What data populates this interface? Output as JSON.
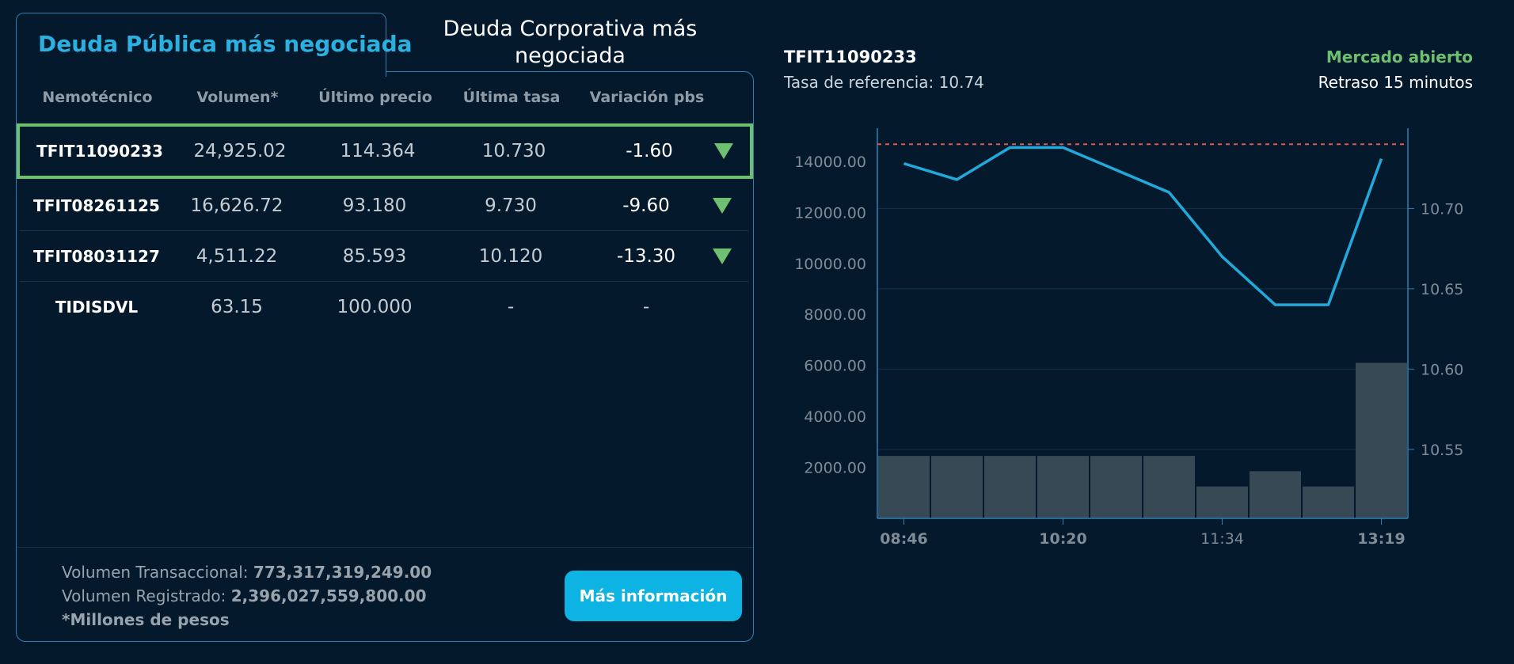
{
  "tabs": {
    "active": "Deuda Pública más negociada",
    "inactive_line1": "Deuda Corporativa más",
    "inactive_line2": "negociada"
  },
  "table": {
    "headers": [
      "Nemotécnico",
      "Volumen*",
      "Último precio",
      "Última tasa",
      "Variación pbs"
    ],
    "rows": [
      {
        "nemo": "TFIT11090233",
        "volumen": "24,925.02",
        "precio": "114.364",
        "tasa": "10.730",
        "variacion": "-1.60",
        "trend": "down",
        "selected": true
      },
      {
        "nemo": "TFIT08261125",
        "volumen": "16,626.72",
        "precio": "93.180",
        "tasa": "9.730",
        "variacion": "-9.60",
        "trend": "down",
        "selected": false
      },
      {
        "nemo": "TFIT08031127",
        "volumen": "4,511.22",
        "precio": "85.593",
        "tasa": "10.120",
        "variacion": "-13.30",
        "trend": "down",
        "selected": false
      },
      {
        "nemo": "TIDISDVL",
        "volumen": "63.15",
        "precio": "100.000",
        "tasa": "-",
        "variacion": "-",
        "trend": "none",
        "selected": false
      }
    ]
  },
  "footer": {
    "vol_trans_label": "Volumen Transaccional: ",
    "vol_trans_value": "773,317,319,249.00",
    "vol_reg_label": "Volumen Registrado: ",
    "vol_reg_value": "2,396,027,559,800.00",
    "note": "*Millones de pesos",
    "button": "Más información"
  },
  "detail": {
    "ticker": "TFIT11090233",
    "ref_rate": "Tasa de referencia: 10.74",
    "market_status": "Mercado abierto",
    "delay": "Retraso 15 minutos"
  },
  "colors": {
    "background": "#041a2c",
    "accent": "#2bb0e0",
    "positive": "#6cc070",
    "button": "#0cb3e3",
    "line": "#22a9dc",
    "bars": "#364954",
    "reference": "#e05656"
  },
  "chart_data": {
    "type": "bar+line",
    "x_ticks": [
      "08:46",
      "10:20",
      "11:34",
      "13:19"
    ],
    "x_tick_positions": [
      0.5,
      3.5,
      6.5,
      9.5
    ],
    "left_axis": {
      "ticks": [
        "2000.00",
        "4000.00",
        "6000.00",
        "8000.00",
        "10000.00",
        "12000.00",
        "14000.00"
      ],
      "ylim": [
        0,
        15300
      ]
    },
    "right_axis": {
      "ticks": [
        "10.55",
        "10.60",
        "10.65",
        "10.70"
      ],
      "ylim": [
        10.507,
        10.75
      ]
    },
    "volume_bars": [
      2450,
      2450,
      2450,
      2450,
      2450,
      2450,
      1250,
      1850,
      1250,
      6100
    ],
    "rate_line": [
      10.728,
      10.718,
      10.738,
      10.738,
      10.724,
      10.71,
      10.67,
      10.64,
      10.64,
      10.731
    ],
    "reference_rate": 10.74,
    "grid": true
  }
}
